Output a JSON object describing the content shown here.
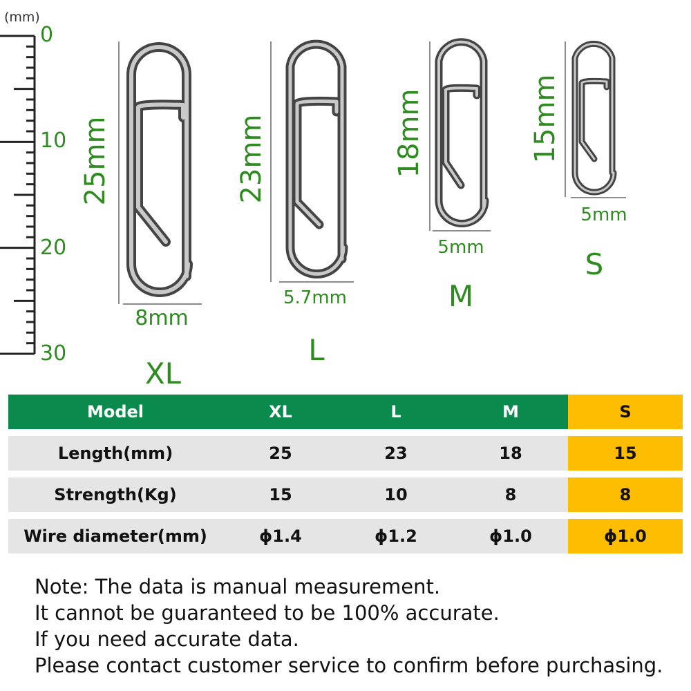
{
  "ruler": {
    "unit": "(mm)",
    "marks": [
      "0",
      "10",
      "20",
      "30"
    ]
  },
  "products": [
    {
      "size": "XL",
      "length_label": "25mm",
      "width_label": "8mm"
    },
    {
      "size": "L",
      "length_label": "23mm",
      "width_label": "5.7mm"
    },
    {
      "size": "M",
      "length_label": "18mm",
      "width_label": "5mm"
    },
    {
      "size": "S",
      "length_label": "15mm",
      "width_label": "5mm"
    }
  ],
  "table": {
    "header": [
      "Model",
      "XL",
      "L",
      "M",
      "S"
    ],
    "rows": [
      [
        "Length(mm)",
        "25",
        "23",
        "18",
        "15"
      ],
      [
        "Strength(Kg)",
        "15",
        "10",
        "8",
        "8"
      ],
      [
        "Wire diameter(mm)",
        "ɸ1.4",
        "ɸ1.2",
        "ɸ1.0",
        "ɸ1.0"
      ]
    ]
  },
  "note": [
    "Note: The data is manual measurement.",
    "It cannot be guaranteed to be 100% accurate.",
    "If you need accurate data.",
    "Please contact customer service to confirm before purchasing."
  ],
  "colors": {
    "accent_green": "#0b8a4d",
    "label_green": "#2e8b1f",
    "highlight": "#ffbd00",
    "row_gray": "#e5e5e5"
  }
}
